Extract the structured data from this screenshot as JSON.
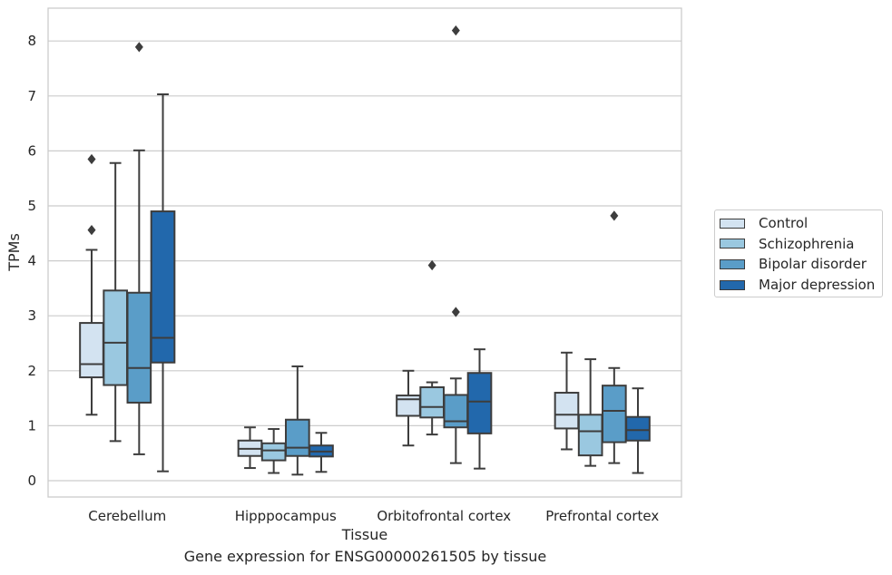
{
  "chart_data": {
    "type": "boxplot",
    "caption": "Gene expression for ENSG00000261505 by tissue",
    "xlabel": "Tissue",
    "ylabel": "TPMs",
    "ylim": [
      -0.3,
      8.6
    ],
    "yticks": [
      0,
      1,
      2,
      3,
      4,
      5,
      6,
      7,
      8
    ],
    "grid": true,
    "legend_position": "right",
    "categories": [
      "Cerebellum",
      "Hipppocampus",
      "Orbitofrontal cortex",
      "Prefrontal cortex"
    ],
    "series": [
      {
        "name": "Control",
        "color": "#d3e3f1",
        "boxes": [
          {
            "whisker_low": 1.2,
            "q1": 1.88,
            "median": 2.12,
            "q3": 2.87,
            "whisker_high": 4.2,
            "outliers": [
              4.56,
              5.85
            ]
          },
          {
            "whisker_low": 0.23,
            "q1": 0.45,
            "median": 0.58,
            "q3": 0.73,
            "whisker_high": 0.97,
            "outliers": []
          },
          {
            "whisker_low": 0.64,
            "q1": 1.18,
            "median": 1.48,
            "q3": 1.55,
            "whisker_high": 2.0,
            "outliers": []
          },
          {
            "whisker_low": 0.57,
            "q1": 0.95,
            "median": 1.2,
            "q3": 1.6,
            "whisker_high": 2.33,
            "outliers": []
          }
        ]
      },
      {
        "name": "Schizophrenia",
        "color": "#9ac8e0",
        "boxes": [
          {
            "whisker_low": 0.72,
            "q1": 1.74,
            "median": 2.51,
            "q3": 3.46,
            "whisker_high": 5.78,
            "outliers": []
          },
          {
            "whisker_low": 0.14,
            "q1": 0.37,
            "median": 0.55,
            "q3": 0.68,
            "whisker_high": 0.94,
            "outliers": []
          },
          {
            "whisker_low": 0.84,
            "q1": 1.15,
            "median": 1.34,
            "q3": 1.7,
            "whisker_high": 1.79,
            "outliers": [
              3.92
            ]
          },
          {
            "whisker_low": 0.27,
            "q1": 0.46,
            "median": 0.9,
            "q3": 1.2,
            "whisker_high": 2.21,
            "outliers": []
          }
        ]
      },
      {
        "name": "Bipolar disorder",
        "color": "#5a9dc8",
        "boxes": [
          {
            "whisker_low": 0.48,
            "q1": 1.42,
            "median": 2.05,
            "q3": 3.42,
            "whisker_high": 6.01,
            "outliers": [
              7.89
            ]
          },
          {
            "whisker_low": 0.11,
            "q1": 0.45,
            "median": 0.6,
            "q3": 1.11,
            "whisker_high": 2.08,
            "outliers": []
          },
          {
            "whisker_low": 0.32,
            "q1": 0.97,
            "median": 1.08,
            "q3": 1.56,
            "whisker_high": 1.86,
            "outliers": [
              3.07,
              8.19
            ]
          },
          {
            "whisker_low": 0.32,
            "q1": 0.7,
            "median": 1.27,
            "q3": 1.73,
            "whisker_high": 2.05,
            "outliers": [
              4.82
            ]
          }
        ]
      },
      {
        "name": "Major depression",
        "color": "#2268ac",
        "boxes": [
          {
            "whisker_low": 0.17,
            "q1": 2.15,
            "median": 2.6,
            "q3": 4.9,
            "whisker_high": 7.03,
            "outliers": []
          },
          {
            "whisker_low": 0.16,
            "q1": 0.44,
            "median": 0.53,
            "q3": 0.64,
            "whisker_high": 0.87,
            "outliers": []
          },
          {
            "whisker_low": 0.22,
            "q1": 0.86,
            "median": 1.44,
            "q3": 1.96,
            "whisker_high": 2.39,
            "outliers": []
          },
          {
            "whisker_low": 0.14,
            "q1": 0.73,
            "median": 0.92,
            "q3": 1.16,
            "whisker_high": 1.68,
            "outliers": []
          }
        ]
      }
    ]
  }
}
